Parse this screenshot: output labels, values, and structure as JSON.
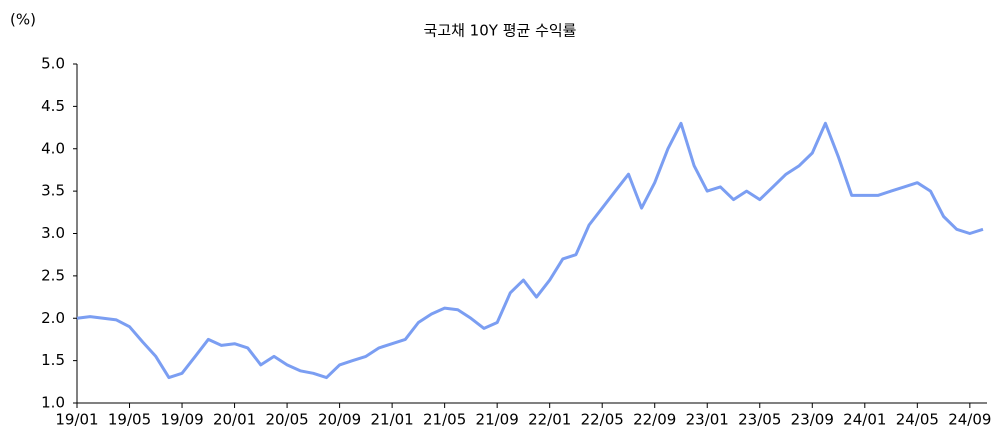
{
  "chart_data": {
    "type": "line",
    "title": "국고채 10Y 평균 수익률",
    "y_label": "(%)",
    "categories": [
      "19/01",
      null,
      null,
      null,
      "19/05",
      null,
      null,
      null,
      "19/09",
      null,
      null,
      null,
      "20/01",
      null,
      null,
      null,
      "20/05",
      null,
      null,
      null,
      "20/09",
      null,
      null,
      null,
      "21/01",
      null,
      null,
      null,
      "21/05",
      null,
      null,
      null,
      "21/09",
      null,
      null,
      null,
      "22/01",
      null,
      null,
      null,
      "22/05",
      null,
      null,
      null,
      "22/09",
      null,
      null,
      null,
      "23/01",
      null,
      null,
      null,
      "23/05",
      null,
      null,
      null,
      "23/09",
      null,
      null,
      null,
      "24/01",
      null,
      null,
      null,
      "24/05",
      null,
      null,
      null,
      "24/09",
      null
    ],
    "values": [
      2.0,
      2.02,
      2.0,
      1.98,
      1.9,
      1.72,
      1.55,
      1.3,
      1.35,
      1.55,
      1.75,
      1.68,
      1.7,
      1.65,
      1.45,
      1.55,
      1.45,
      1.38,
      1.35,
      1.3,
      1.45,
      1.5,
      1.55,
      1.65,
      1.7,
      1.75,
      1.95,
      2.05,
      2.12,
      2.1,
      2.0,
      1.88,
      1.95,
      2.3,
      2.45,
      2.25,
      2.45,
      2.7,
      2.75,
      3.1,
      3.3,
      3.5,
      3.7,
      3.3,
      3.6,
      4.0,
      4.3,
      3.8,
      3.5,
      3.55,
      3.4,
      3.5,
      3.4,
      3.55,
      3.7,
      3.8,
      3.95,
      4.3,
      3.9,
      3.45,
      3.45,
      3.45,
      3.5,
      3.55,
      3.6,
      3.5,
      3.2,
      3.05,
      3.0,
      3.05
    ],
    "color": "#7b9ef2",
    "ylim": [
      1,
      5
    ],
    "yticks": [
      {
        "value": 1,
        "label": "1.0"
      },
      1.5,
      {
        "value": 2,
        "label": "2.0"
      },
      2.5,
      {
        "value": 3,
        "label": "3.0"
      },
      3.5,
      {
        "value": 4,
        "label": "4.0"
      },
      4.5,
      {
        "value": 5,
        "label": "5.0"
      }
    ]
  }
}
